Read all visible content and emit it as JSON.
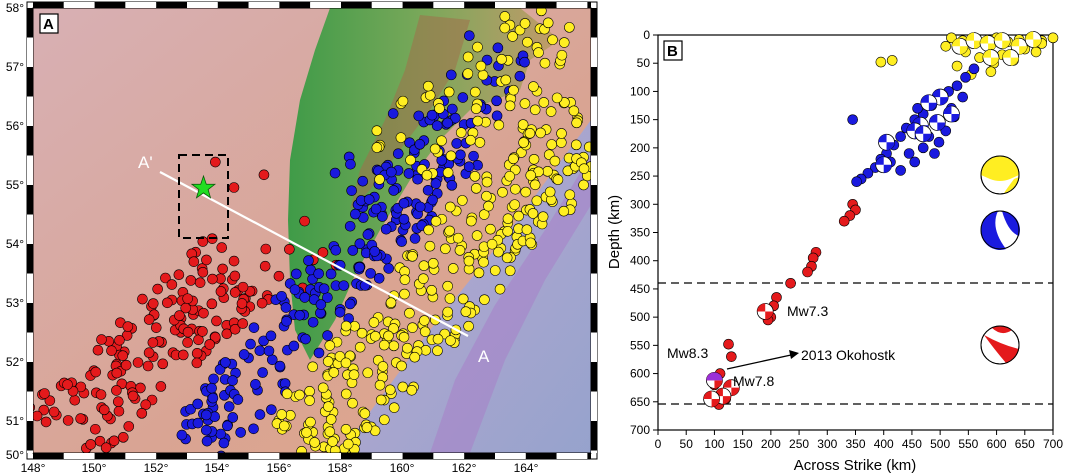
{
  "panel_a": {
    "label": "A",
    "lon_ticks": [
      "148°",
      "150°",
      "152°",
      "154°",
      "156°",
      "158°",
      "160°",
      "162°",
      "164°"
    ],
    "lat_ticks": [
      "58°",
      "57°",
      "56°",
      "55°",
      "54°",
      "53°",
      "52°",
      "51°",
      "50°"
    ],
    "profile_start": "A'",
    "profile_end": "A",
    "star_color": "#22dd22",
    "colors": {
      "red": "#e41a1c",
      "blue": "#1a1adf",
      "yellow": "#ffee22",
      "land": "#4a9a4a",
      "sea": "#d8a898"
    }
  },
  "panel_b": {
    "label": "B",
    "xlabel": "Across Strike (km)",
    "ylabel": "Depth (km)",
    "x_ticks": [
      "0",
      "50",
      "100",
      "150",
      "200",
      "250",
      "300",
      "350",
      "400",
      "450",
      "500",
      "550",
      "600",
      "650",
      "700"
    ],
    "y_ticks": [
      "0",
      "50",
      "100",
      "150",
      "200",
      "250",
      "300",
      "350",
      "400",
      "450",
      "500",
      "550",
      "600",
      "650",
      "700"
    ],
    "annotations": {
      "mw73": "Mw7.3",
      "mw83": "Mw8.3",
      "mw78": "Mw7.8",
      "okhotsk": "2013 Okohostk"
    }
  },
  "chart_data": {
    "type": "scatter",
    "xlabel": "Across Strike (km)",
    "ylabel": "Depth (km)",
    "xlim": [
      0,
      700
    ],
    "ylim": [
      700,
      0
    ],
    "dashed_depths": [
      440,
      660
    ],
    "series": [
      {
        "color": "#ffee22",
        "points": [
          [
            520,
            5
          ],
          [
            540,
            10
          ],
          [
            560,
            8
          ],
          [
            580,
            15
          ],
          [
            600,
            5
          ],
          [
            620,
            12
          ],
          [
            640,
            8
          ],
          [
            660,
            5
          ],
          [
            680,
            10
          ],
          [
            545,
            30
          ],
          [
            570,
            40
          ],
          [
            610,
            35
          ],
          [
            650,
            25
          ],
          [
            595,
            50
          ],
          [
            630,
            45
          ],
          [
            680,
            15
          ],
          [
            510,
            20
          ],
          [
            530,
            55
          ],
          [
            555,
            70
          ],
          [
            700,
            5
          ],
          [
            395,
            48
          ],
          [
            415,
            45
          ],
          [
            590,
            65
          ],
          [
            670,
            30
          ]
        ]
      },
      {
        "color": "#1a1adf",
        "points": [
          [
            560,
            60
          ],
          [
            545,
            75
          ],
          [
            530,
            90
          ],
          [
            515,
            100
          ],
          [
            500,
            115
          ],
          [
            485,
            125
          ],
          [
            470,
            140
          ],
          [
            455,
            150
          ],
          [
            440,
            165
          ],
          [
            430,
            180
          ],
          [
            418,
            195
          ],
          [
            405,
            210
          ],
          [
            395,
            220
          ],
          [
            385,
            235
          ],
          [
            372,
            245
          ],
          [
            360,
            255
          ],
          [
            352,
            260
          ],
          [
            345,
            150
          ],
          [
            410,
            190
          ],
          [
            470,
            200
          ],
          [
            490,
            210
          ],
          [
            500,
            160
          ],
          [
            520,
            130
          ],
          [
            540,
            110
          ],
          [
            460,
            130
          ],
          [
            510,
            170
          ],
          [
            525,
            145
          ],
          [
            480,
            180
          ],
          [
            498,
            190
          ],
          [
            445,
            210
          ],
          [
            455,
            225
          ],
          [
            430,
            240
          ],
          [
            412,
            225
          ]
        ]
      },
      {
        "color": "#e41a1c",
        "points": [
          [
            345,
            300
          ],
          [
            350,
            310
          ],
          [
            340,
            320
          ],
          [
            330,
            330
          ],
          [
            280,
            385
          ],
          [
            275,
            395
          ],
          [
            272,
            410
          ],
          [
            265,
            420
          ],
          [
            235,
            440
          ],
          [
            210,
            465
          ],
          [
            205,
            480
          ],
          [
            200,
            500
          ],
          [
            195,
            505
          ],
          [
            125,
            548
          ],
          [
            130,
            570
          ],
          [
            110,
            600
          ],
          [
            100,
            620
          ],
          [
            95,
            650
          ],
          [
            108,
            655
          ],
          [
            120,
            645
          ]
        ]
      }
    ],
    "mechanisms": [
      {
        "x": 535,
        "y": 20
      },
      {
        "x": 560,
        "y": 10
      },
      {
        "x": 585,
        "y": 15
      },
      {
        "x": 610,
        "y": 10
      },
      {
        "x": 640,
        "y": 20
      },
      {
        "x": 665,
        "y": 8
      },
      {
        "x": 590,
        "y": 40
      },
      {
        "x": 625,
        "y": 40
      },
      {
        "x": 500,
        "y": 110
      },
      {
        "x": 480,
        "y": 120
      },
      {
        "x": 520,
        "y": 140
      },
      {
        "x": 465,
        "y": 160
      },
      {
        "x": 455,
        "y": 170
      },
      {
        "x": 470,
        "y": 175
      },
      {
        "x": 405,
        "y": 190
      },
      {
        "x": 400,
        "y": 230
      },
      {
        "x": 495,
        "y": 155
      },
      {
        "x": 190,
        "y": 490
      },
      {
        "x": 100,
        "y": 612
      },
      {
        "x": 130,
        "y": 625
      },
      {
        "x": 115,
        "y": 640
      },
      {
        "x": 95,
        "y": 645
      }
    ]
  }
}
